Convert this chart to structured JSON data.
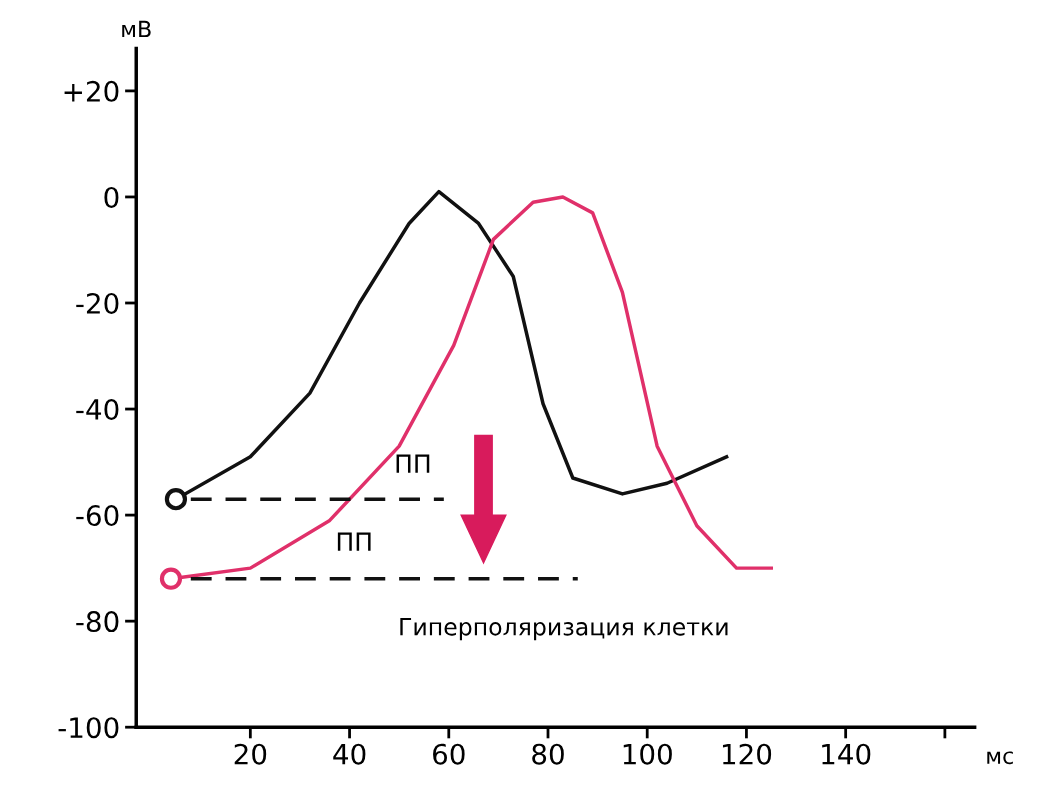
{
  "chart_data": {
    "type": "line",
    "ylabel": "мВ",
    "xlabel": "мс",
    "xlim": [
      -3,
      166
    ],
    "ylim": [
      -100,
      28
    ],
    "xticks": [
      20,
      40,
      60,
      80,
      100,
      120,
      140,
      {
        "value": 160,
        "label": null
      }
    ],
    "yticks": [
      {
        "value": 20,
        "label": "+20"
      },
      0,
      -20,
      -40,
      -60,
      -80,
      -100
    ],
    "grid": false,
    "legend": false,
    "line_style": "solid",
    "series": [
      {
        "color": "#111111",
        "x": [
          5,
          20,
          32,
          42,
          52,
          58,
          66,
          73,
          79,
          85,
          95,
          104,
          116
        ],
        "values": [
          -57,
          -49,
          -37,
          -20,
          -5,
          1,
          -5,
          -15,
          -39,
          -53,
          -56,
          -54,
          -49
        ]
      },
      {
        "color": "#e0306a",
        "x": [
          4,
          20,
          36,
          50,
          61,
          69,
          77,
          83,
          89,
          95,
          102,
          110,
          118,
          125
        ],
        "values": [
          -72,
          -70,
          -61,
          -47,
          -28,
          -8,
          -1,
          0,
          -3,
          -18,
          -47,
          -62,
          -70,
          -70
        ]
      },
      {
        "color": "#111111",
        "type": "line",
        "line_style": "dashed",
        "marker": "none",
        "x": [
          8,
          59
        ],
        "values": [
          -57,
          -57
        ]
      },
      {
        "color": "#111111",
        "type": "line",
        "line_style": "dashed",
        "marker": "none",
        "x": [
          8,
          86
        ],
        "values": [
          -72,
          -72
        ]
      }
    ],
    "annotations": [
      "ПП",
      "ПП",
      "Гиперполяризация клетки"
    ]
  }
}
